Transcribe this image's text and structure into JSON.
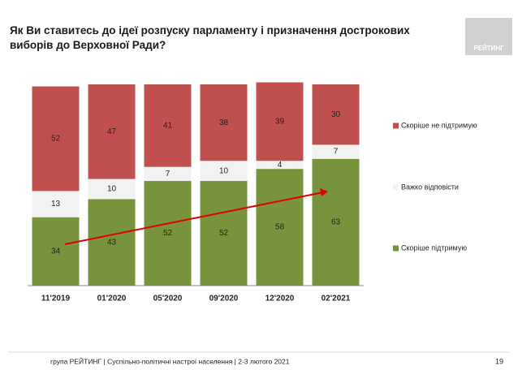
{
  "chart_data": {
    "type": "stacked-bar",
    "title": "Як Ви ставитесь до ідеї розпуску парламенту і призначення дострокових виборів до Верховної Ради?",
    "categories": [
      "11'2019",
      "01'2020",
      "05'2020",
      "09'2020",
      "12'2020",
      "02'2021"
    ],
    "series": [
      {
        "name": "Скоріше  підтримую",
        "color": "#77933c",
        "values": [
          34,
          43,
          52,
          52,
          58,
          63
        ]
      },
      {
        "name": "Важко відповісти",
        "color": "#f2f2f2",
        "values": [
          13,
          10,
          7,
          10,
          4,
          7
        ]
      },
      {
        "name": "Скоріше не підтримую",
        "color": "#c0504d",
        "values": [
          52,
          47,
          41,
          38,
          39,
          30
        ]
      }
    ]
  },
  "logo": "РЕЙТИНГ",
  "footer": {
    "text": "група РЕЙТИНГ | Суспільно-політичні настрої населення  | 2-3 лютого 2021",
    "page": "19"
  }
}
